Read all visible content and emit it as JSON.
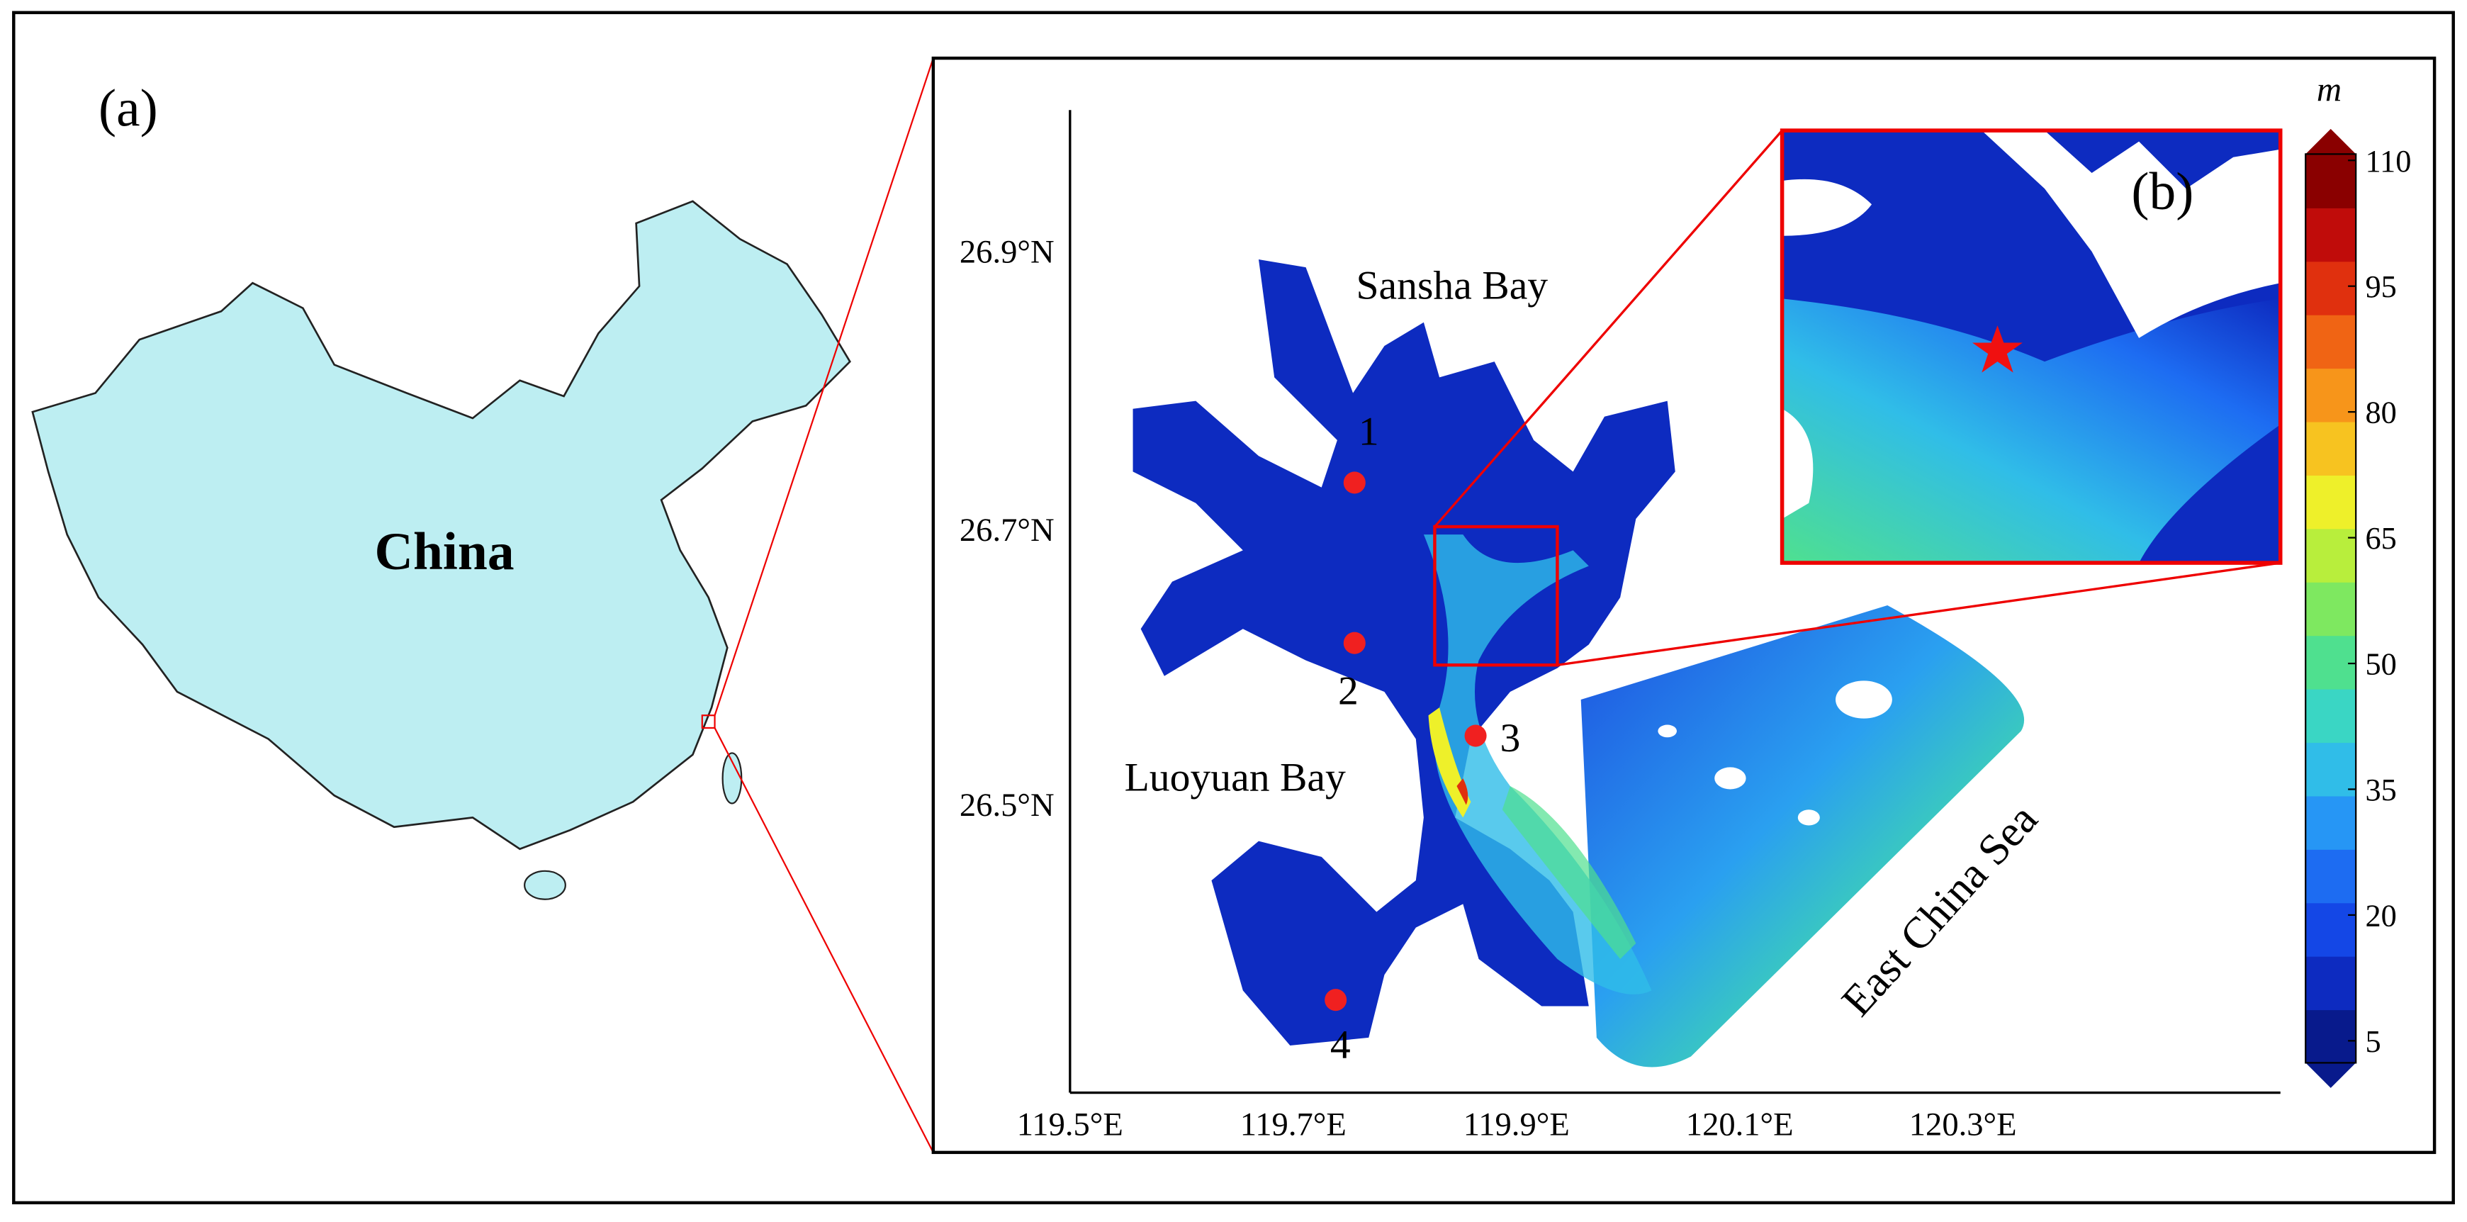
{
  "panel_a": {
    "label": "(a)",
    "country": "China"
  },
  "panel_b": {
    "label": "(b)"
  },
  "map": {
    "yticks": [
      "26.9°N",
      "26.7°N",
      "26.5°N"
    ],
    "xticks": [
      "119.5°E",
      "119.7°E",
      "119.9°E",
      "120.1°E",
      "120.3°E"
    ],
    "places": [
      "Sansha Bay",
      "Luoyuan Bay",
      "East China Sea"
    ],
    "sites": [
      "1",
      "2",
      "3",
      "4"
    ]
  },
  "colorbar": {
    "unit": "m",
    "ticks": [
      5,
      20,
      35,
      50,
      65,
      80,
      95,
      110
    ],
    "colors": [
      "#081a8c",
      "#0d2bc0",
      "#1447e6",
      "#1d6cf2",
      "#2696f5",
      "#30bde8",
      "#3ad6c4",
      "#4fe08f",
      "#7ee860",
      "#b8ee3c",
      "#eef02a",
      "#f7c320",
      "#f7951a",
      "#f06414",
      "#e0300e",
      "#c00c0a",
      "#8a0000"
    ]
  }
}
